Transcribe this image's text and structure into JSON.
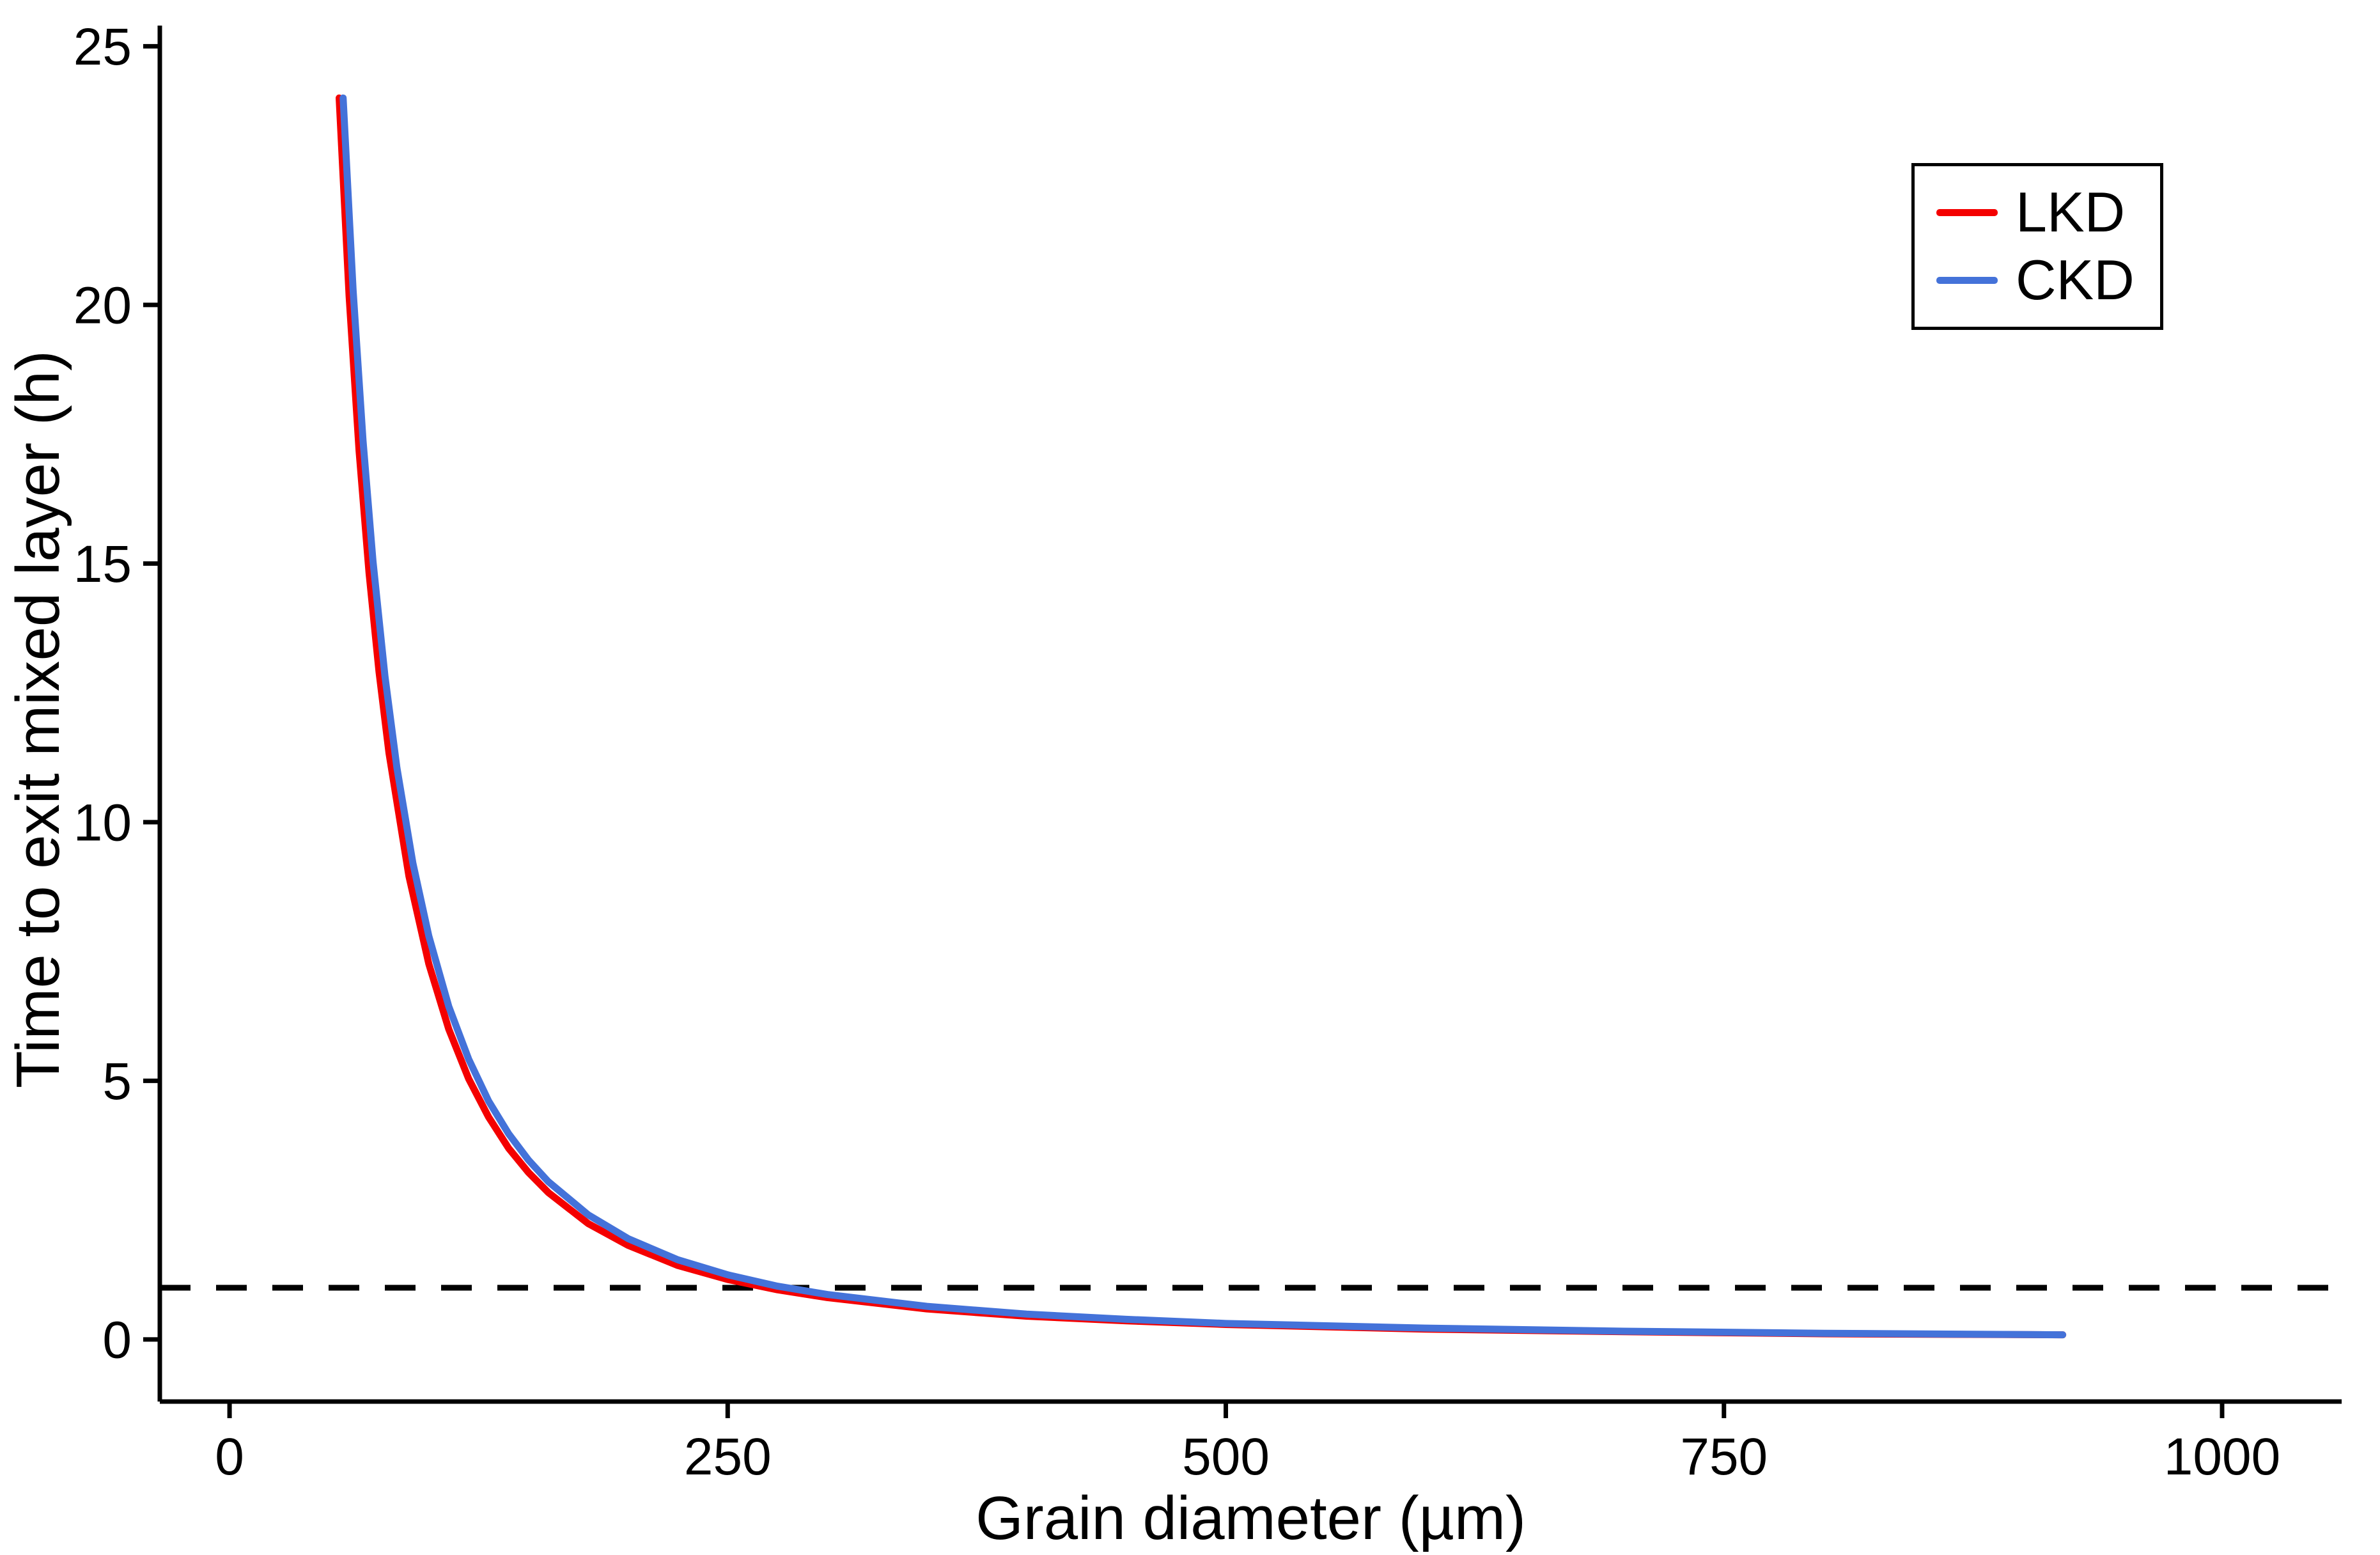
{
  "chart_data": {
    "type": "line",
    "title": "",
    "xlabel": "Grain diameter (µm)",
    "ylabel": "Time to exit mixed layer (h)",
    "xlim": [
      -35,
      1060
    ],
    "ylim": [
      -1.2,
      25.4
    ],
    "x_ticks": [
      0,
      250,
      500,
      750,
      1000
    ],
    "y_ticks": [
      0,
      5,
      10,
      15,
      20,
      25
    ],
    "grid": false,
    "legend_position": "top-right",
    "axis_color": "#000000",
    "text_color": "#000000",
    "reference_line": {
      "y": 1,
      "style": "dashed",
      "color": "#000000"
    },
    "series": [
      {
        "name": "LKD",
        "color": "#f40000",
        "x": [
          55,
          60,
          65,
          70,
          75,
          80,
          90,
          100,
          110,
          120,
          130,
          140,
          150,
          160,
          180,
          200,
          225,
          250,
          275,
          300,
          350,
          400,
          450,
          500,
          600,
          700,
          800,
          920
        ],
        "y": [
          24.0,
          20.17,
          17.18,
          14.82,
          12.91,
          11.34,
          8.96,
          7.26,
          6.0,
          5.04,
          4.3,
          3.7,
          3.23,
          2.84,
          2.24,
          1.82,
          1.43,
          1.16,
          0.96,
          0.81,
          0.59,
          0.45,
          0.36,
          0.29,
          0.2,
          0.15,
          0.11,
          0.09
        ],
        "legend_label": "LKD"
      },
      {
        "name": "CKD",
        "color": "#4472d9",
        "x": [
          57,
          62,
          67,
          72,
          78,
          84,
          92,
          100,
          110,
          120,
          130,
          140,
          150,
          160,
          180,
          200,
          225,
          250,
          275,
          300,
          350,
          400,
          450,
          500,
          600,
          700,
          800,
          920
        ],
        "y": [
          24.0,
          20.29,
          17.37,
          15.04,
          12.82,
          11.05,
          9.21,
          7.8,
          6.44,
          5.42,
          4.61,
          3.98,
          3.47,
          3.05,
          2.41,
          1.95,
          1.54,
          1.25,
          1.03,
          0.87,
          0.64,
          0.49,
          0.39,
          0.31,
          0.22,
          0.16,
          0.12,
          0.09
        ],
        "legend_label": "CKD"
      }
    ]
  }
}
